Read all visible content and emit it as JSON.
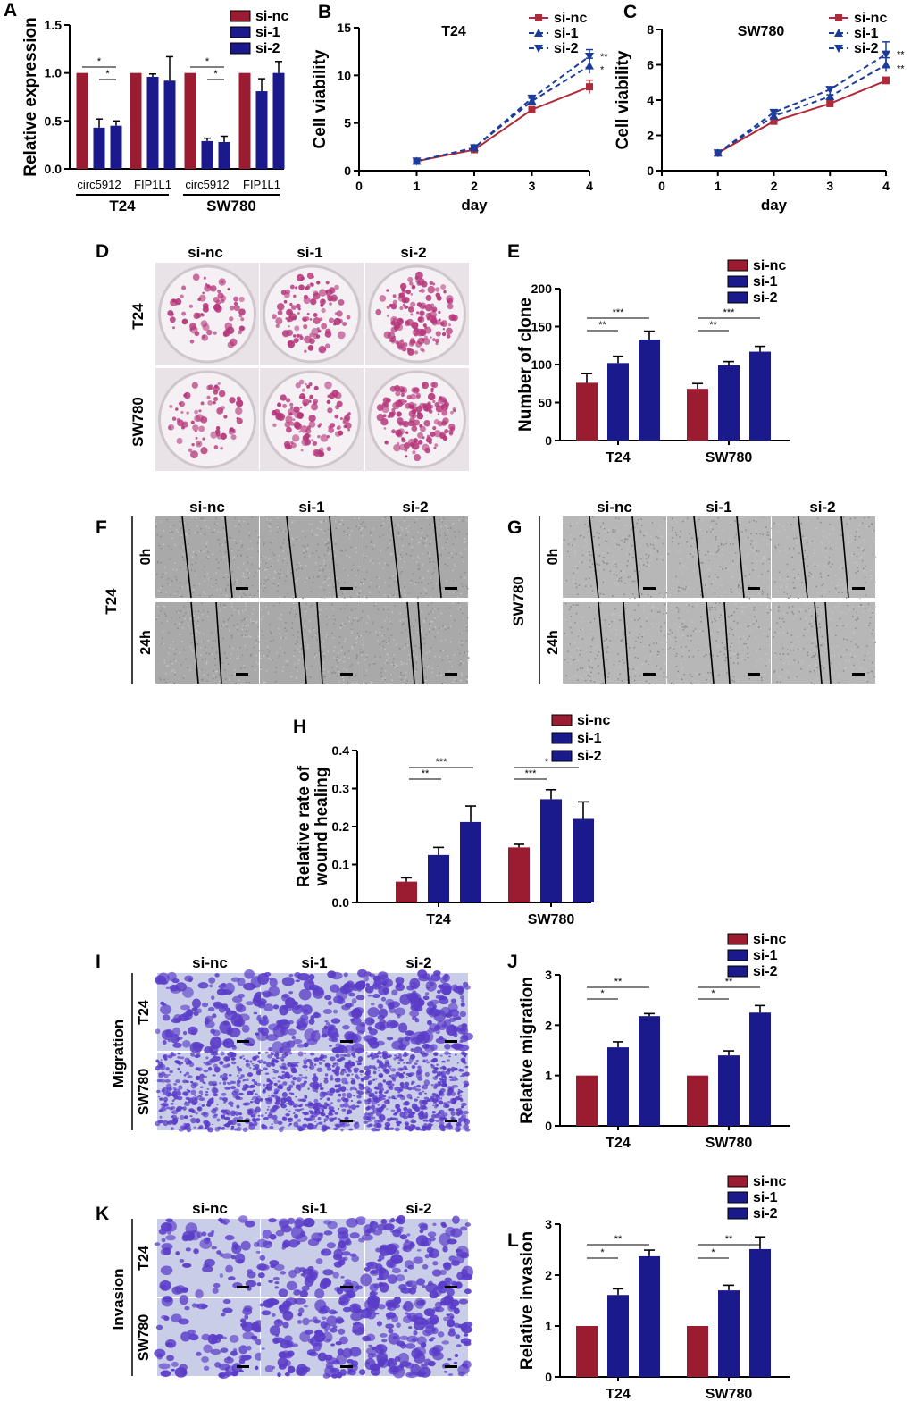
{
  "colors": {
    "si_nc": "#9b1b30",
    "si_1": "#1a1a8c",
    "si_2": "#1a1a8c",
    "line_nc": "#b02a3a",
    "line_si": "#1c3c9c",
    "dish_spots": "#b5367a",
    "dish_bg": "#ebe6ea",
    "wound_bg": "#a8a8a8",
    "transwell_bg": "#c9cde8",
    "transwell_cells": "#5a3cc8"
  },
  "panel_letters": {
    "A": "A",
    "B": "B",
    "C": "C",
    "D": "D",
    "E": "E",
    "F": "F",
    "G": "G",
    "H": "H",
    "I": "I",
    "J": "J",
    "K": "K",
    "L": "L"
  },
  "image_panels": {
    "columns": [
      "si-nc",
      "si-1",
      "si-2"
    ],
    "D": {
      "rows": [
        "T24",
        "SW780"
      ]
    },
    "F": {
      "cell_label": "T24",
      "rows": [
        "0h",
        "24h"
      ]
    },
    "G": {
      "cell_label": "SW780",
      "rows": [
        "0h",
        "24h"
      ]
    },
    "I": {
      "group_label": "Migration",
      "rows": [
        "T24",
        "SW780"
      ]
    },
    "K": {
      "group_label": "Invasion",
      "rows": [
        "T24",
        "SW780"
      ]
    }
  },
  "chart_data": [
    {
      "id": "A",
      "type": "bar",
      "title": "",
      "xlabel": "",
      "ylabel": "Relative expression",
      "ylim": [
        0,
        1.5
      ],
      "yticks": [
        "0.0",
        "0.5",
        "1.0",
        "1.5"
      ],
      "categories": [
        "circ5912",
        "FIP1L1",
        "circ5912",
        "FIP1L1"
      ],
      "groups": [
        "T24",
        "SW780"
      ],
      "series": [
        {
          "name": "si-nc",
          "values": [
            1.0,
            1.0,
            1.0,
            1.0
          ],
          "errors": [
            0.0,
            0.0,
            0.0,
            0.0
          ]
        },
        {
          "name": "si-1",
          "values": [
            0.43,
            0.96,
            0.29,
            0.81
          ],
          "errors": [
            0.09,
            0.03,
            0.03,
            0.13
          ]
        },
        {
          "name": "si-2",
          "values": [
            0.45,
            0.92,
            0.28,
            1.0
          ],
          "errors": [
            0.05,
            0.25,
            0.06,
            0.12
          ]
        }
      ],
      "annotations": [
        "*",
        "*",
        "*",
        "*"
      ],
      "legend": "top-right"
    },
    {
      "id": "B",
      "type": "line",
      "title": "T24",
      "xlabel": "day",
      "ylabel": "Cell viability",
      "xlim": [
        0,
        4
      ],
      "ylim": [
        0,
        15
      ],
      "xticks": [
        "0",
        "1",
        "2",
        "3",
        "4"
      ],
      "yticks": [
        "0",
        "5",
        "10",
        "15"
      ],
      "x": [
        1,
        2,
        3,
        4
      ],
      "series": [
        {
          "name": "si-nc",
          "values": [
            1.0,
            2.2,
            6.4,
            8.8
          ],
          "errors": [
            0.1,
            0.15,
            0.3,
            0.7
          ]
        },
        {
          "name": "si-1",
          "values": [
            1.0,
            2.4,
            7.3,
            11.0
          ],
          "errors": [
            0.1,
            0.15,
            0.3,
            0.8
          ]
        },
        {
          "name": "si-2",
          "values": [
            1.0,
            2.4,
            7.6,
            12.0
          ],
          "errors": [
            0.1,
            0.15,
            0.3,
            0.7
          ]
        }
      ],
      "annotations": [
        "**",
        "*"
      ],
      "legend": "top-right"
    },
    {
      "id": "C",
      "type": "line",
      "title": "SW780",
      "xlabel": "day",
      "ylabel": "Cell viability",
      "xlim": [
        0,
        4
      ],
      "ylim": [
        0,
        8
      ],
      "xticks": [
        "0",
        "1",
        "2",
        "3",
        "4"
      ],
      "yticks": [
        "0",
        "2",
        "4",
        "6",
        "8"
      ],
      "x": [
        1,
        2,
        3,
        4
      ],
      "series": [
        {
          "name": "si-nc",
          "values": [
            1.0,
            2.8,
            3.8,
            5.1
          ],
          "errors": [
            0.05,
            0.1,
            0.1,
            0.2
          ]
        },
        {
          "name": "si-1",
          "values": [
            1.0,
            3.1,
            4.2,
            6.0
          ],
          "errors": [
            0.05,
            0.1,
            0.1,
            0.4
          ]
        },
        {
          "name": "si-2",
          "values": [
            1.0,
            3.3,
            4.6,
            6.6
          ],
          "errors": [
            0.05,
            0.1,
            0.1,
            0.7
          ]
        }
      ],
      "annotations": [
        "**",
        "**"
      ],
      "legend": "top-right"
    },
    {
      "id": "E",
      "type": "bar",
      "title": "",
      "xlabel": "",
      "ylabel": "Number of clone",
      "ylim": [
        0,
        200
      ],
      "yticks": [
        "0",
        "50",
        "100",
        "150",
        "200"
      ],
      "categories": [
        "T24",
        "SW780"
      ],
      "series": [
        {
          "name": "si-nc",
          "values": [
            76,
            68
          ],
          "errors": [
            12,
            7
          ]
        },
        {
          "name": "si-1",
          "values": [
            102,
            99
          ],
          "errors": [
            9,
            5
          ]
        },
        {
          "name": "si-2",
          "values": [
            133,
            117
          ],
          "errors": [
            11,
            7
          ]
        }
      ],
      "annotations": [
        "**",
        "***",
        "**",
        "***"
      ],
      "legend": "top-right"
    },
    {
      "id": "H",
      "type": "bar",
      "title": "",
      "xlabel": "",
      "ylabel": "Relative rate of wound healing",
      "ylim": [
        0,
        0.4
      ],
      "yticks": [
        "0.0",
        "0.1",
        "0.2",
        "0.3",
        "0.4"
      ],
      "categories": [
        "T24",
        "SW780"
      ],
      "series": [
        {
          "name": "si-nc",
          "values": [
            0.055,
            0.145
          ],
          "errors": [
            0.01,
            0.008
          ]
        },
        {
          "name": "si-1",
          "values": [
            0.125,
            0.272
          ],
          "errors": [
            0.02,
            0.025
          ]
        },
        {
          "name": "si-2",
          "values": [
            0.212,
            0.22
          ],
          "errors": [
            0.042,
            0.045
          ]
        }
      ],
      "annotations": [
        "**",
        "***",
        "***",
        "*"
      ],
      "legend": "top-right"
    },
    {
      "id": "J",
      "type": "bar",
      "title": "",
      "xlabel": "",
      "ylabel": "Relative migration",
      "ylim": [
        0,
        3
      ],
      "yticks": [
        "0",
        "1",
        "2",
        "3"
      ],
      "categories": [
        "T24",
        "SW780"
      ],
      "series": [
        {
          "name": "si-nc",
          "values": [
            1.0,
            1.0
          ],
          "errors": [
            0.0,
            0.0
          ]
        },
        {
          "name": "si-1",
          "values": [
            1.56,
            1.4
          ],
          "errors": [
            0.11,
            0.09
          ]
        },
        {
          "name": "si-2",
          "values": [
            2.18,
            2.25
          ],
          "errors": [
            0.05,
            0.14
          ]
        }
      ],
      "annotations": [
        "*",
        "**",
        "*",
        "**"
      ],
      "legend": "top-right"
    },
    {
      "id": "L",
      "type": "bar",
      "title": "",
      "xlabel": "",
      "ylabel": "Relative invasion",
      "ylim": [
        0,
        3
      ],
      "yticks": [
        "0",
        "1",
        "2",
        "3"
      ],
      "categories": [
        "T24",
        "SW780"
      ],
      "series": [
        {
          "name": "si-nc",
          "values": [
            1.0,
            1.0
          ],
          "errors": [
            0.0,
            0.0
          ]
        },
        {
          "name": "si-1",
          "values": [
            1.61,
            1.7
          ],
          "errors": [
            0.12,
            0.1
          ]
        },
        {
          "name": "si-2",
          "values": [
            2.37,
            2.51
          ],
          "errors": [
            0.12,
            0.24
          ]
        }
      ],
      "annotations": [
        "*",
        "**",
        "*",
        "**"
      ],
      "legend": "top-right"
    }
  ]
}
